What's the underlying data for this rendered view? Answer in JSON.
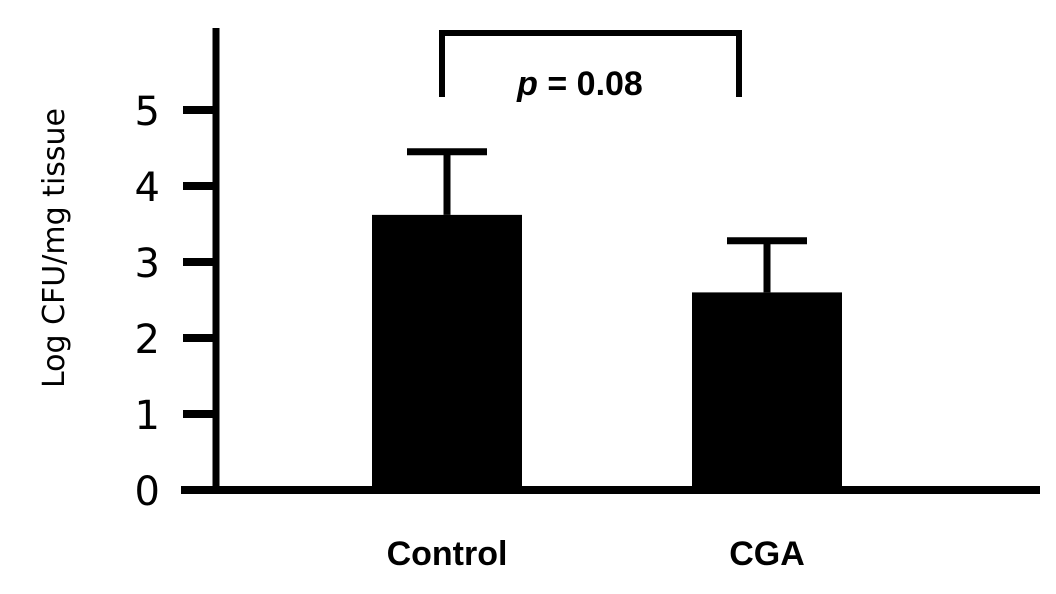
{
  "chart_data": {
    "type": "bar",
    "categories": [
      "Control",
      "CGA"
    ],
    "values": [
      3.62,
      2.6
    ],
    "error_upper": [
      4.45,
      3.28
    ],
    "ylabel": "Log CFU/mg tissue",
    "xlabel": "",
    "ylim": [
      0,
      5
    ],
    "yticks": [
      0,
      1,
      2,
      3,
      4,
      5
    ],
    "tick_labels": [
      "0",
      "1",
      "2",
      "3",
      "4",
      "5"
    ],
    "grid": false,
    "bar_color": "#000000",
    "annotation": {
      "p_symbol": "p",
      "text": " = 0.08",
      "between": [
        "Control",
        "CGA"
      ]
    }
  }
}
